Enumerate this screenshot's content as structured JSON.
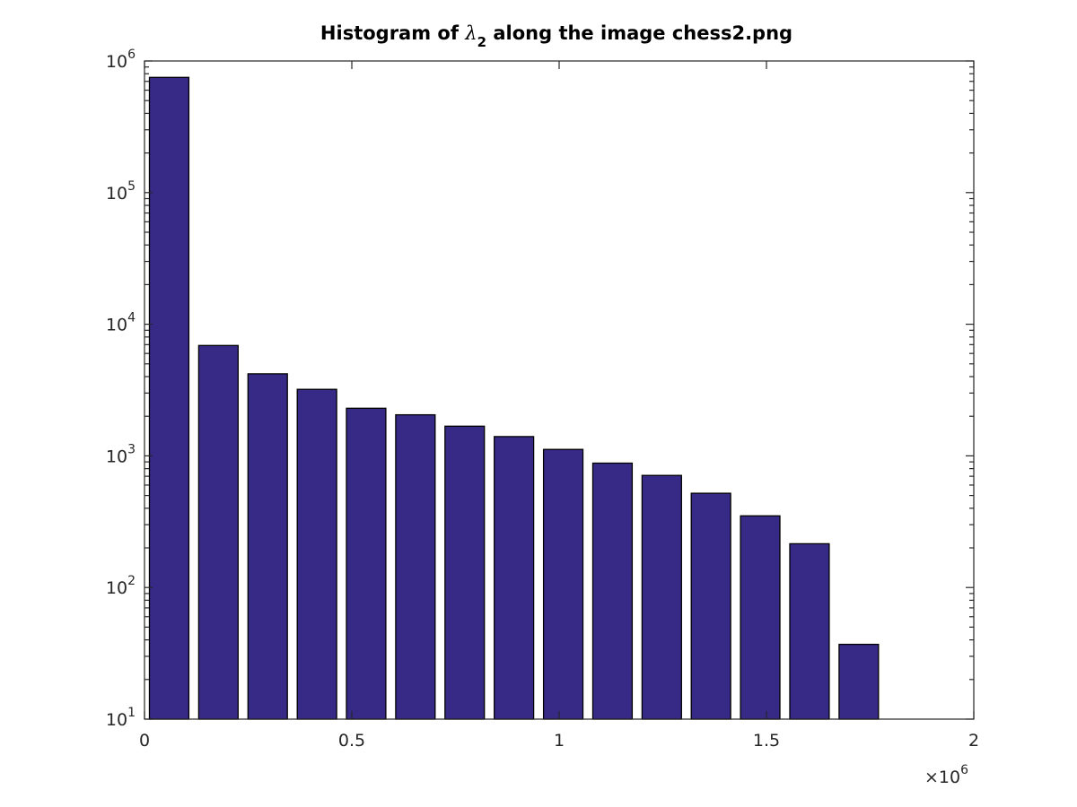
{
  "chart_data": {
    "type": "bar",
    "title_prefix": "Histogram of ",
    "title_symbol": "λ",
    "title_subscript": "2",
    "title_suffix": " along the image chess2.png",
    "xlim": [
      0,
      2000000
    ],
    "x_ticks": [
      {
        "value": 0,
        "label": "0"
      },
      {
        "value": 500000,
        "label": "0.5"
      },
      {
        "value": 1000000,
        "label": "1"
      },
      {
        "value": 1500000,
        "label": "1.5"
      },
      {
        "value": 2000000,
        "label": "2"
      }
    ],
    "x_exponent_base": "×10",
    "x_exponent_power": "6",
    "y_scale": "log",
    "ylim": [
      10,
      1000000
    ],
    "y_ticks": [
      {
        "value": 10,
        "base": "10",
        "power": "1"
      },
      {
        "value": 100,
        "base": "10",
        "power": "2"
      },
      {
        "value": 1000,
        "base": "10",
        "power": "3"
      },
      {
        "value": 10000,
        "base": "10",
        "power": "4"
      },
      {
        "value": 100000,
        "base": "10",
        "power": "5"
      },
      {
        "value": 1000000,
        "base": "10",
        "power": "6"
      }
    ],
    "bar_width": 95000,
    "bar_color": "#372a87",
    "bars": [
      {
        "x": 59400,
        "value": 750000
      },
      {
        "x": 178200,
        "value": 6900
      },
      {
        "x": 297000,
        "value": 4200
      },
      {
        "x": 415800,
        "value": 3200
      },
      {
        "x": 534600,
        "value": 2300
      },
      {
        "x": 653400,
        "value": 2050
      },
      {
        "x": 772200,
        "value": 1680
      },
      {
        "x": 891000,
        "value": 1400
      },
      {
        "x": 1009800,
        "value": 1120
      },
      {
        "x": 1128600,
        "value": 880
      },
      {
        "x": 1247400,
        "value": 710
      },
      {
        "x": 1366200,
        "value": 520
      },
      {
        "x": 1485000,
        "value": 350
      },
      {
        "x": 1603800,
        "value": 215
      },
      {
        "x": 1722600,
        "value": 37
      }
    ],
    "grid": false,
    "box": true
  }
}
